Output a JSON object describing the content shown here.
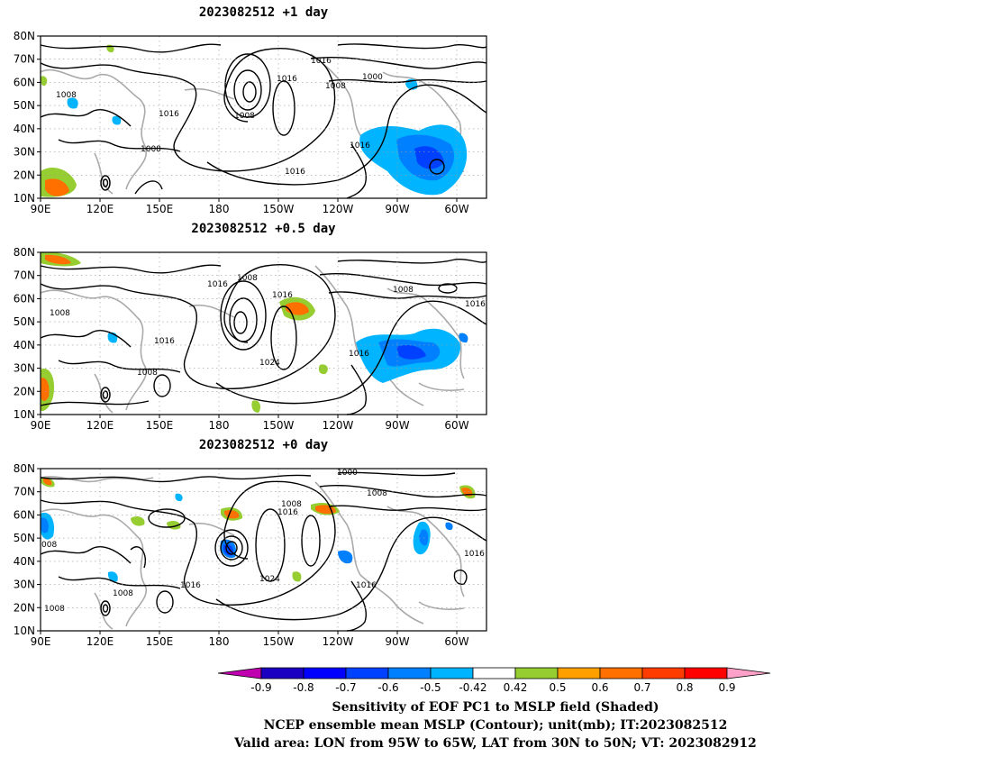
{
  "panels": [
    {
      "title": "2023082512  +1 day",
      "contour_labels": [
        "1016",
        "1008",
        "1016",
        "1008",
        "1000",
        "1008",
        "1016",
        "1016",
        "1008",
        "1016"
      ]
    },
    {
      "title": "2023082512  +0.5 day",
      "contour_labels": [
        "1008",
        "1016",
        "1016",
        "1008",
        "1016",
        "1008",
        "1016",
        "1016",
        "1024",
        "1008"
      ]
    },
    {
      "title": "2023082512  +0 day",
      "contour_labels": [
        "1000",
        "1008",
        "1008",
        "1016",
        "1016",
        "1024",
        "1016",
        "1008",
        "1016",
        "1008",
        "008"
      ]
    }
  ],
  "axes": {
    "lat_ticks": [
      "80N",
      "70N",
      "60N",
      "50N",
      "40N",
      "30N",
      "20N",
      "10N"
    ],
    "lon_ticks": [
      "90E",
      "120E",
      "150E",
      "180",
      "150W",
      "120W",
      "90W",
      "60W"
    ]
  },
  "colorbar": {
    "labels": [
      "-0.9",
      "-0.8",
      "-0.7",
      "-0.6",
      "-0.5",
      "-0.42",
      "0.42",
      "0.5",
      "0.6",
      "0.7",
      "0.8",
      "0.9"
    ],
    "colors": [
      "#1a00c0",
      "#0000ff",
      "#0040ff",
      "#0080ff",
      "#00b4ff",
      "#ffffff",
      "#96cd30",
      "#ffa000",
      "#ff7000",
      "#ff3c00",
      "#ff0000"
    ],
    "low_extend_color": "#c000b0",
    "high_extend_color": "#ffa0c8"
  },
  "captions": [
    "Sensitivity of EOF PC1 to MSLP field (Shaded)",
    "NCEP ensemble mean MSLP (Contour); unit(mb); IT:2023082512",
    "Valid area: LON from 95W to 65W, LAT from 30N to 50N; VT: 2023082912"
  ]
}
